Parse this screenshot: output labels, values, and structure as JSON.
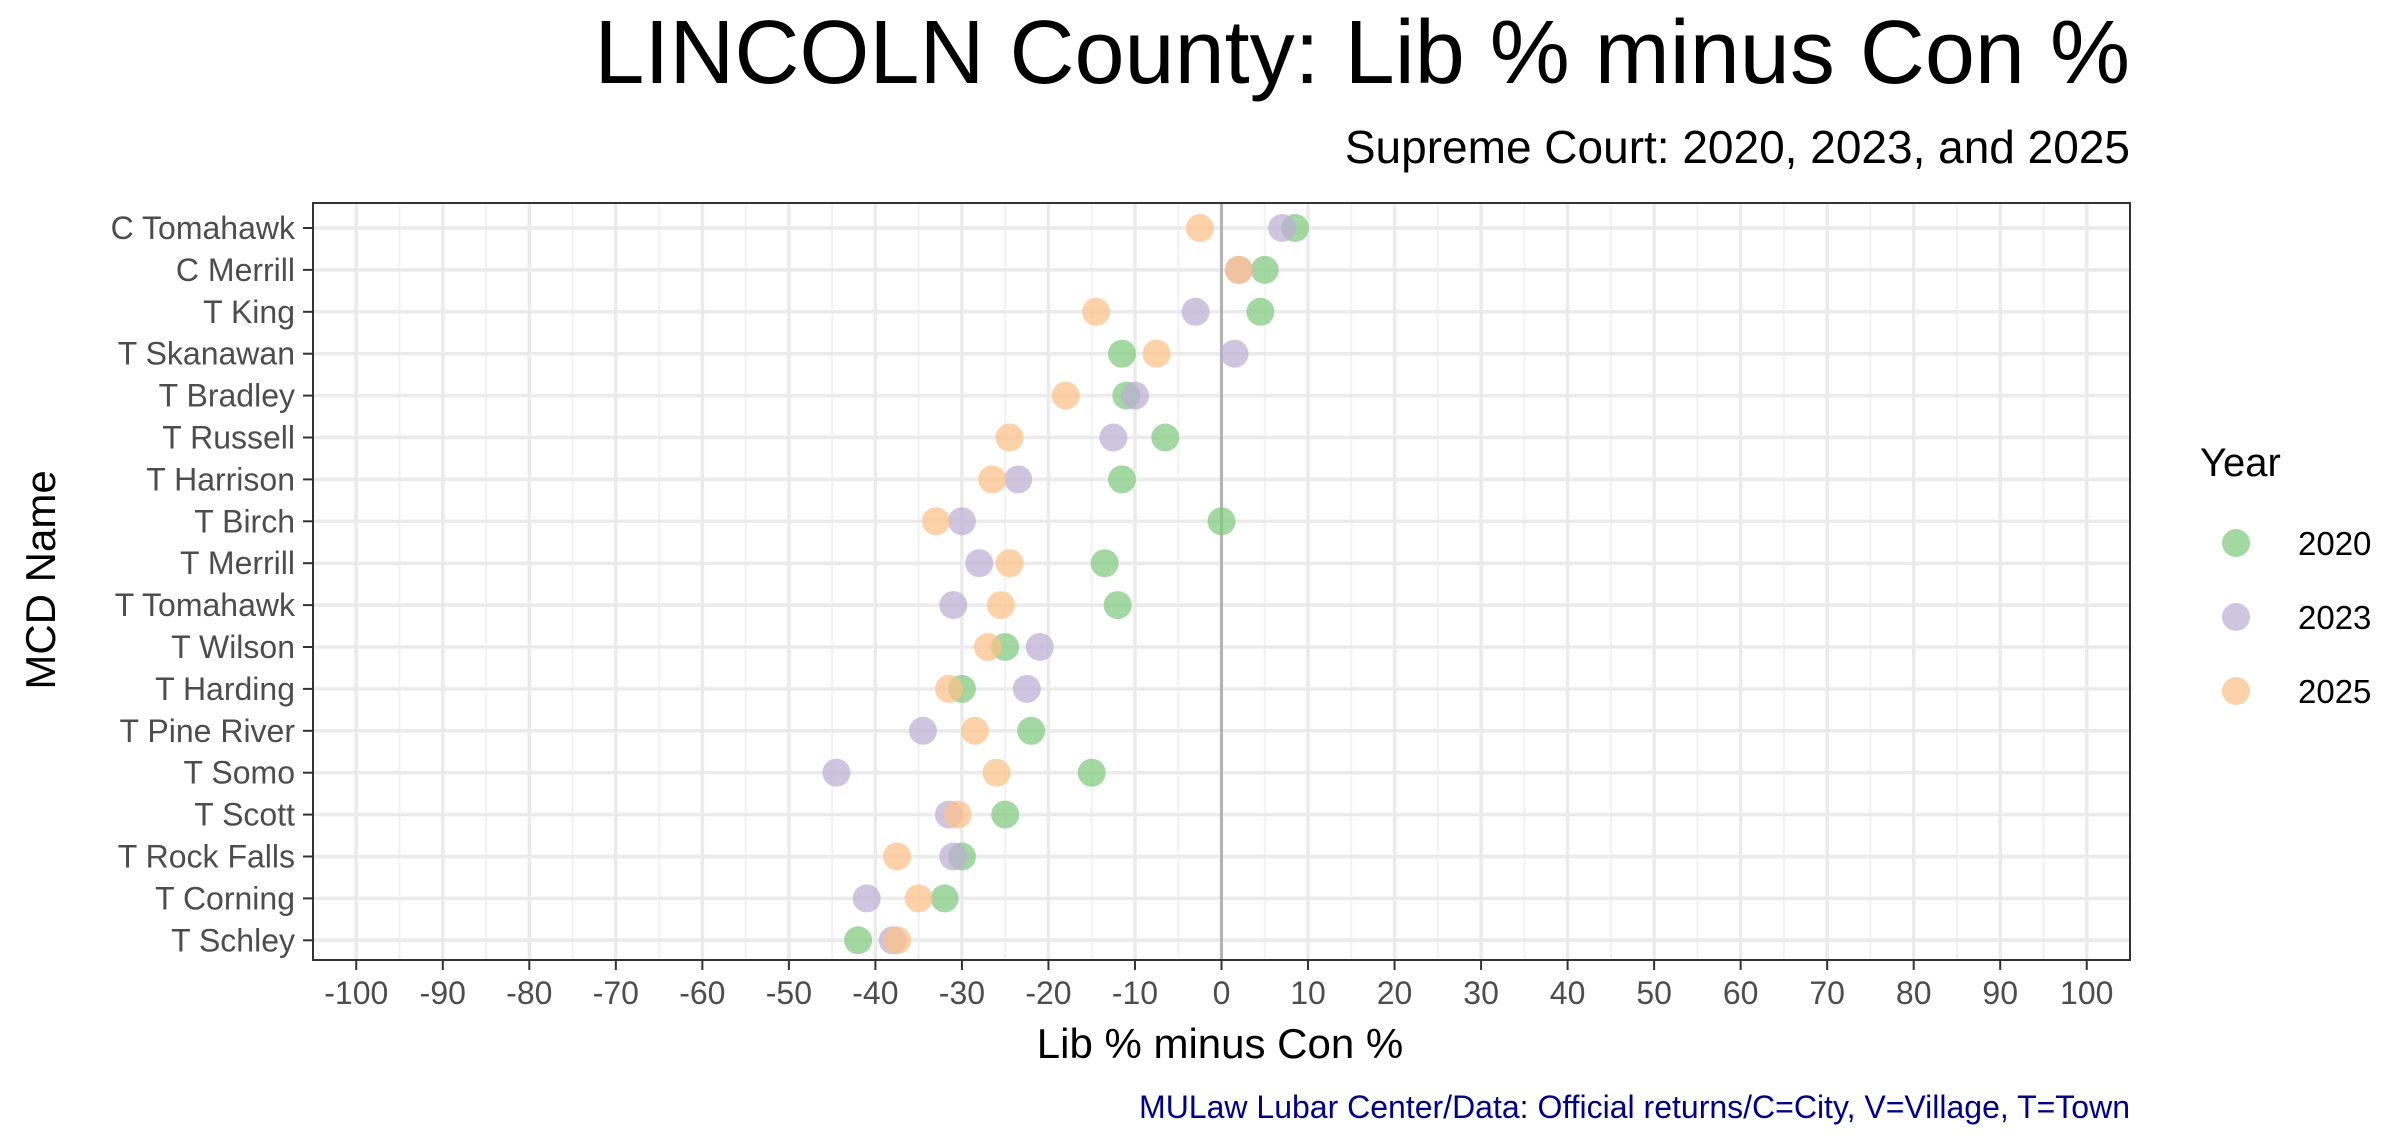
{
  "chart_data": {
    "type": "scatter",
    "title": "LINCOLN County: Lib % minus Con %",
    "subtitle": "Supreme Court: 2020, 2023, and 2025",
    "xlabel": "Lib % minus Con %",
    "ylabel": "MCD Name",
    "caption": "MULaw Lubar Center/Data: Official returns/C=City, V=Village, T=Town",
    "xlim": [
      -105,
      105
    ],
    "x_ticks": [
      -100,
      -90,
      -80,
      -70,
      -60,
      -50,
      -40,
      -30,
      -20,
      -10,
      0,
      10,
      20,
      30,
      40,
      50,
      60,
      70,
      80,
      90,
      100
    ],
    "x_tick_labels": [
      "-100",
      "-90",
      "-80",
      "-70",
      "-60",
      "-50",
      "-40",
      "-30",
      "-20",
      "-10",
      "0",
      "10",
      "20",
      "30",
      "40",
      "50",
      "60",
      "70",
      "80",
      "90",
      "100"
    ],
    "grid": true,
    "reference_line_x": 0,
    "legend": {
      "title": "Year",
      "position": "right"
    },
    "categories": [
      "C Tomahawk",
      "C Merrill",
      "T King",
      "T Skanawan",
      "T Bradley",
      "T Russell",
      "T Harrison",
      "T Birch",
      "T Merrill",
      "T Tomahawk",
      "T Wilson",
      "T Harding",
      "T Pine River",
      "T Somo",
      "T Scott",
      "T Rock Falls",
      "T Corning",
      "T Schley"
    ],
    "series": [
      {
        "name": "2020",
        "color": "#7fc97f",
        "values": [
          8.5,
          5,
          4.5,
          -11.5,
          -11,
          -6.5,
          -11.5,
          0,
          -13.5,
          -12,
          -25,
          -30,
          -22,
          -15,
          -25,
          -30,
          -32,
          -42
        ]
      },
      {
        "name": "2023",
        "color": "#beaed4",
        "values": [
          7,
          2,
          -3,
          1.5,
          -10,
          -12.5,
          -23.5,
          -30,
          -28,
          -31,
          -21,
          -22.5,
          -34.5,
          -44.5,
          -31.5,
          -31,
          -41,
          -38
        ]
      },
      {
        "name": "2025",
        "color": "#fdc086",
        "values": [
          -2.5,
          2,
          -14.5,
          -7.5,
          -18,
          -24.5,
          -26.5,
          -33,
          -24.5,
          -25.5,
          -27,
          -31.5,
          -28.5,
          -26,
          -30.5,
          -37.5,
          -35,
          -37.5
        ]
      }
    ]
  }
}
